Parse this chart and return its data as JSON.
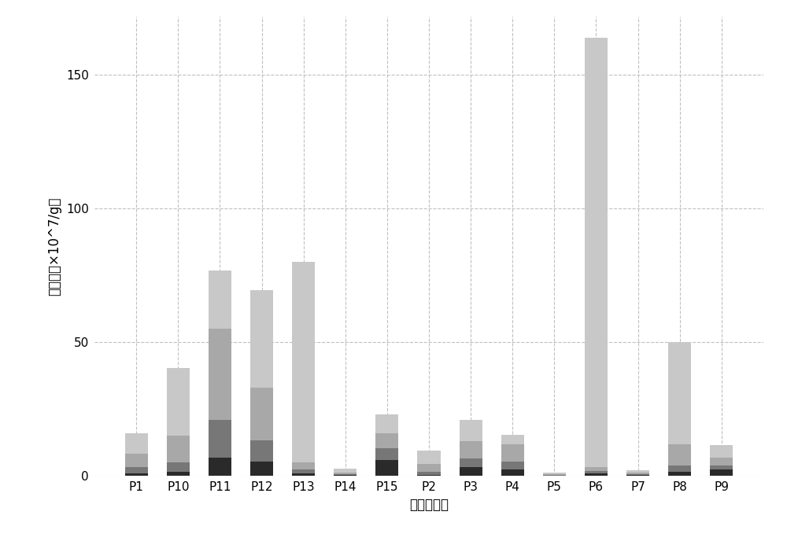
{
  "categories": [
    "P1",
    "P10",
    "P11",
    "P12",
    "P13",
    "P14",
    "P15",
    "P2",
    "P3",
    "P4",
    "P5",
    "P6",
    "P7",
    "P8",
    "P9"
  ],
  "layer1": [
    1.0,
    1.5,
    7.0,
    5.5,
    1.0,
    0.3,
    6.0,
    0.5,
    3.5,
    2.5,
    0.2,
    1.0,
    0.3,
    1.5,
    2.5
  ],
  "layer2": [
    2.5,
    3.5,
    14.0,
    8.0,
    1.5,
    0.4,
    4.5,
    1.0,
    3.0,
    3.0,
    0.2,
    1.0,
    0.3,
    2.5,
    1.5
  ],
  "layer3": [
    5.0,
    10.0,
    34.0,
    19.5,
    2.5,
    0.7,
    5.5,
    3.0,
    6.5,
    6.5,
    0.4,
    1.5,
    0.7,
    8.0,
    3.0
  ],
  "layer4": [
    7.5,
    25.5,
    22.0,
    36.5,
    75.0,
    1.5,
    7.0,
    5.0,
    8.0,
    3.5,
    0.5,
    160.5,
    1.0,
    38.0,
    4.5
  ],
  "colors": [
    "#2a2a2a",
    "#777777",
    "#a8a8a8",
    "#c8c8c8"
  ],
  "xlabel": "志愿者编号",
  "ylabel": "拷贝数（×10^7/g）",
  "background_color": "#ffffff",
  "grid_color": "#c0c0c0",
  "ylim": [
    0,
    172
  ],
  "yticks": [
    0,
    50,
    100,
    150
  ],
  "bar_width": 0.55,
  "figsize": [
    10.0,
    6.88
  ],
  "dpi": 100,
  "tick_fontsize": 11,
  "label_fontsize": 12
}
